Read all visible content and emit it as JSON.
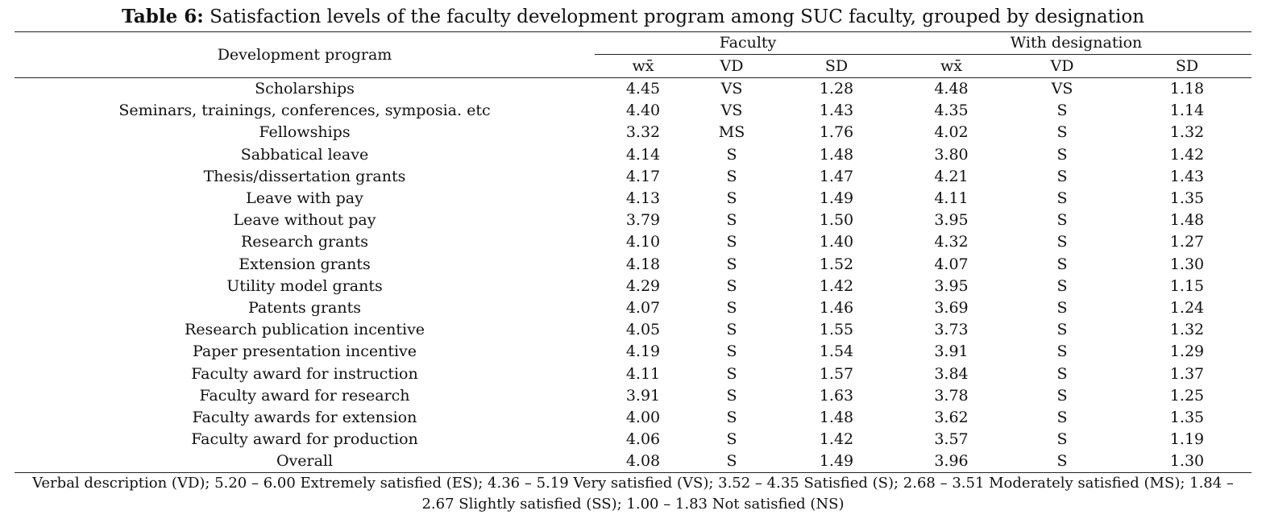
{
  "caption": {
    "label": "Table 6:",
    "text": "Satisfaction levels of the faculty development program among SUC faculty, grouped by designation"
  },
  "table": {
    "row_header": "Development program",
    "groups": [
      "Faculty",
      "With designation"
    ],
    "subheaders": [
      "wx̄",
      "VD",
      "SD",
      "wx̄",
      "VD",
      "SD"
    ],
    "rows": [
      [
        "Scholarships",
        "4.45",
        "VS",
        "1.28",
        "4.48",
        "VS",
        "1.18"
      ],
      [
        "Seminars, trainings, conferences, symposia. etc",
        "4.40",
        "VS",
        "1.43",
        "4.35",
        "S",
        "1.14"
      ],
      [
        "Fellowships",
        "3.32",
        "MS",
        "1.76",
        "4.02",
        "S",
        "1.32"
      ],
      [
        "Sabbatical leave",
        "4.14",
        "S",
        "1.48",
        "3.80",
        "S",
        "1.42"
      ],
      [
        "Thesis/dissertation grants",
        "4.17",
        "S",
        "1.47",
        "4.21",
        "S",
        "1.43"
      ],
      [
        "Leave with pay",
        "4.13",
        "S",
        "1.49",
        "4.11",
        "S",
        "1.35"
      ],
      [
        "Leave without pay",
        "3.79",
        "S",
        "1.50",
        "3.95",
        "S",
        "1.48"
      ],
      [
        "Research grants",
        "4.10",
        "S",
        "1.40",
        "4.32",
        "S",
        "1.27"
      ],
      [
        "Extension grants",
        "4.18",
        "S",
        "1.52",
        "4.07",
        "S",
        "1.30"
      ],
      [
        "Utility model grants",
        "4.29",
        "S",
        "1.42",
        "3.95",
        "S",
        "1.15"
      ],
      [
        "Patents grants",
        "4.07",
        "S",
        "1.46",
        "3.69",
        "S",
        "1.24"
      ],
      [
        "Research publication incentive",
        "4.05",
        "S",
        "1.55",
        "3.73",
        "S",
        "1.32"
      ],
      [
        "Paper presentation incentive",
        "4.19",
        "S",
        "1.54",
        "3.91",
        "S",
        "1.29"
      ],
      [
        "Faculty award for instruction",
        "4.11",
        "S",
        "1.57",
        "3.84",
        "S",
        "1.37"
      ],
      [
        "Faculty award for research",
        "3.91",
        "S",
        "1.63",
        "3.78",
        "S",
        "1.25"
      ],
      [
        "Faculty awards for extension",
        "4.00",
        "S",
        "1.48",
        "3.62",
        "S",
        "1.35"
      ],
      [
        "Faculty award for production",
        "4.06",
        "S",
        "1.42",
        "3.57",
        "S",
        "1.19"
      ],
      [
        "Overall",
        "4.08",
        "S",
        "1.49",
        "3.96",
        "S",
        "1.30"
      ]
    ]
  },
  "footnote": "Verbal description (VD); 5.20 – 6.00 Extremely satisfied (ES); 4.36 – 5.19 Very satisfied (VS); 3.52 – 4.35 Satisfied (S); 2.68 – 3.51 Moderately satisfied (MS); 1.84 – 2.67 Slightly satisfied (SS); 1.00 – 1.83 Not satisfied (NS)"
}
